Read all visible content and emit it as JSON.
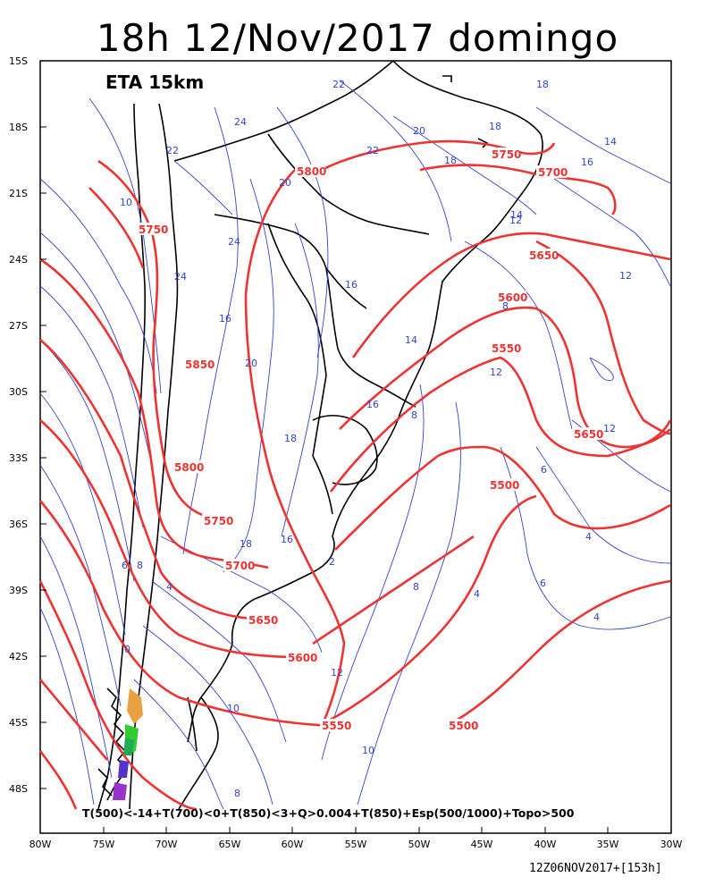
{
  "title": "18h 12/Nov/2017 domingo",
  "model_label": "ETA 15km",
  "legend_text": "T(500)<-14+T(700)<0+T(850)<3+Q>0.004+T(850)+Esp(500/1000)+Topo>500",
  "run_label": "12Z06NOV2017+[153h]",
  "colors": {
    "thickness": "#ee3333",
    "temperature": "#3344cc",
    "coast": "#000000",
    "background": "#ffffff"
  },
  "y_ticks": [
    "15S",
    "18S",
    "21S",
    "24S",
    "27S",
    "30S",
    "33S",
    "36S",
    "39S",
    "42S",
    "45S",
    "48S"
  ],
  "x_ticks": [
    "80W",
    "75W",
    "70W",
    "65W",
    "60W",
    "55W",
    "50W",
    "45W",
    "40W",
    "35W",
    "30W"
  ],
  "thickness_labels": [
    "5800",
    "5750",
    "5700",
    "5750",
    "5650",
    "5600",
    "5550",
    "5850",
    "5800",
    "5750",
    "5700",
    "5650",
    "5600",
    "5550",
    "5500",
    "5650",
    "5500"
  ],
  "temperature_labels": [
    "22",
    "20",
    "18",
    "14",
    "16",
    "12",
    "18",
    "24",
    "22",
    "24",
    "24",
    "16",
    "20",
    "18",
    "16",
    "16",
    "14",
    "12",
    "10",
    "8",
    "6",
    "4",
    "2",
    "0",
    "4",
    "8",
    "12",
    "10",
    "18",
    "16",
    "8",
    "12",
    "6",
    "4",
    "12",
    "14",
    "18",
    "20",
    "22",
    "10",
    "8",
    "6",
    "4",
    "8"
  ]
}
